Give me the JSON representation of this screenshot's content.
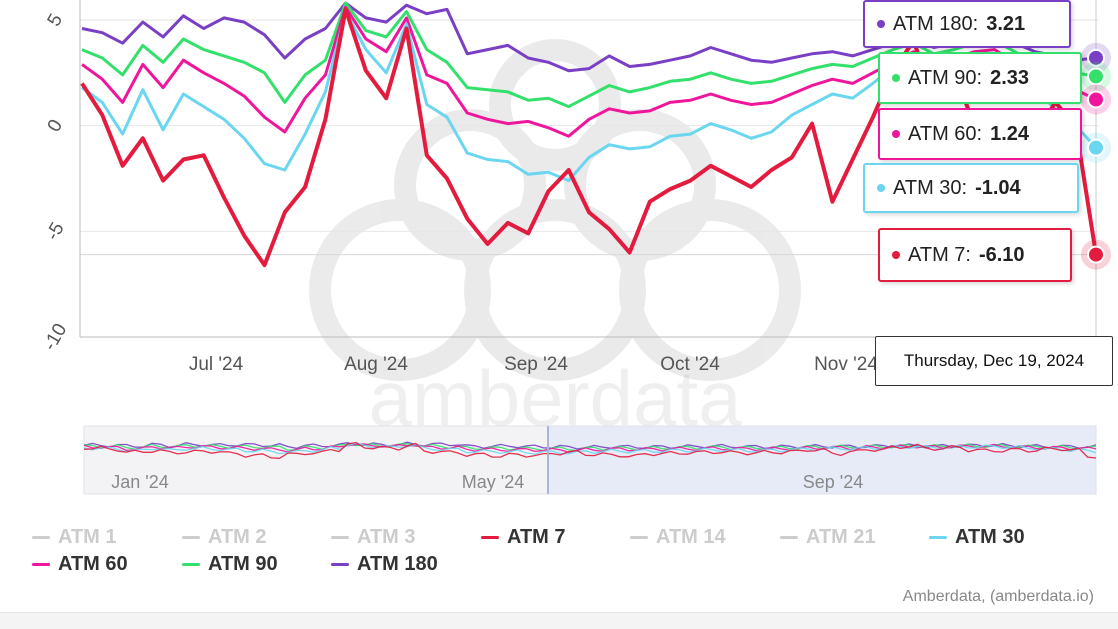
{
  "credit": "Amberdata, (amberdata.io)",
  "watermark": "amberdata",
  "chart_data": {
    "type": "line",
    "xlabel": "",
    "ylabel": "",
    "ylim": [
      -10,
      5
    ],
    "yticks": [
      5,
      0,
      -5,
      -10
    ],
    "ytick_labels": [
      "5",
      "0",
      "-5",
      "-10"
    ],
    "xtick_labels": [
      "Jul '24",
      "Aug '24",
      "Sep '24",
      "Oct '24",
      "Nov '24"
    ],
    "navigator_labels": [
      "Jan '24",
      "May '24",
      "Sep '24"
    ],
    "grid": "horizontal",
    "hover_date": "Thursday, Dec 19, 2024",
    "series": [
      {
        "name": "ATM 180",
        "color": "#7a3fc4",
        "last_label": "3.21",
        "values": [
          4.6,
          4.4,
          3.9,
          4.9,
          4.2,
          5.2,
          4.6,
          5.1,
          4.9,
          4.3,
          3.2,
          4.1,
          4.6,
          5.8,
          5.1,
          4.9,
          5.7,
          5.3,
          5.5,
          3.4,
          3.6,
          3.8,
          3.2,
          3.0,
          2.6,
          2.7,
          3.3,
          2.8,
          2.9,
          3.1,
          3.3,
          3.7,
          3.4,
          3.1,
          3.0,
          3.2,
          3.4,
          3.5,
          3.3,
          3.6,
          3.9,
          4.1,
          3.7,
          3.9,
          4.2,
          4.4,
          3.9,
          3.5,
          3.3,
          3.1,
          3.21
        ]
      },
      {
        "name": "ATM 90",
        "color": "#33e06c",
        "last_label": "2.33",
        "values": [
          3.6,
          3.2,
          2.4,
          3.8,
          3.0,
          4.1,
          3.6,
          3.3,
          3.0,
          2.5,
          1.1,
          2.4,
          3.1,
          5.8,
          4.5,
          4.2,
          5.4,
          3.6,
          3.0,
          1.8,
          1.7,
          1.6,
          1.2,
          1.3,
          0.9,
          1.4,
          1.9,
          1.6,
          1.8,
          2.1,
          2.2,
          2.5,
          2.2,
          2.0,
          2.1,
          2.4,
          2.7,
          2.9,
          2.8,
          3.2,
          3.6,
          3.9,
          3.4,
          3.6,
          3.9,
          4.0,
          3.5,
          3.0,
          2.7,
          2.5,
          2.33
        ]
      },
      {
        "name": "ATM 60",
        "color": "#f0169c",
        "last_label": "1.24",
        "values": [
          2.9,
          2.2,
          1.1,
          2.9,
          1.8,
          3.1,
          2.5,
          2.0,
          1.4,
          0.4,
          -0.3,
          1.3,
          2.4,
          5.6,
          4.1,
          3.5,
          5.1,
          2.4,
          2.0,
          0.6,
          0.3,
          0.1,
          0.2,
          -0.1,
          -0.5,
          0.3,
          0.8,
          0.6,
          0.7,
          1.1,
          1.2,
          1.5,
          1.2,
          1.0,
          1.1,
          1.5,
          1.9,
          2.2,
          2.0,
          2.5,
          3.0,
          3.5,
          3.0,
          3.2,
          3.5,
          3.6,
          3.0,
          2.4,
          2.0,
          1.7,
          1.24
        ]
      },
      {
        "name": "ATM 30",
        "color": "#6ad6f0",
        "last_label": "-1.04",
        "values": [
          1.8,
          1.1,
          -0.4,
          1.7,
          -0.2,
          1.5,
          0.9,
          0.3,
          -0.6,
          -1.8,
          -2.1,
          -0.4,
          1.6,
          5.4,
          3.6,
          2.5,
          4.8,
          1.0,
          0.4,
          -1.3,
          -1.6,
          -1.7,
          -2.3,
          -2.2,
          -2.6,
          -1.5,
          -0.9,
          -1.1,
          -1.0,
          -0.5,
          -0.4,
          0.1,
          -0.2,
          -0.6,
          -0.3,
          0.5,
          1.0,
          1.5,
          1.3,
          2.0,
          2.8,
          3.2,
          2.6,
          2.9,
          3.1,
          3.2,
          2.6,
          1.7,
          0.8,
          0.0,
          -1.04
        ]
      },
      {
        "name": "ATM 7",
        "color": "#e31b3e",
        "last_label": "-6.10",
        "values": [
          2.0,
          0.5,
          -1.9,
          -0.6,
          -2.6,
          -1.6,
          -1.4,
          -3.4,
          -5.2,
          -6.6,
          -4.1,
          -2.9,
          0.3,
          5.5,
          2.6,
          1.3,
          4.6,
          -1.4,
          -2.5,
          -4.4,
          -5.6,
          -4.6,
          -5.1,
          -3.1,
          -2.1,
          -4.1,
          -4.9,
          -6.0,
          -3.6,
          -3.0,
          -2.6,
          -1.9,
          -2.4,
          -2.9,
          -2.1,
          -1.5,
          0.1,
          -3.6,
          -1.6,
          0.4,
          2.6,
          4.0,
          1.4,
          2.6,
          0.0,
          -0.6,
          0.2,
          -0.4,
          1.1,
          0.0,
          -6.1
        ]
      }
    ],
    "hidden_series": [
      "ATM 1",
      "ATM 2",
      "ATM 3",
      "ATM 14",
      "ATM 21"
    ]
  },
  "legend": [
    {
      "label": "ATM 1",
      "color": "#cccccc",
      "visible": false
    },
    {
      "label": "ATM 2",
      "color": "#cccccc",
      "visible": false
    },
    {
      "label": "ATM 3",
      "color": "#cccccc",
      "visible": false
    },
    {
      "label": "ATM 7",
      "color": "#e31b3e",
      "visible": true
    },
    {
      "label": "ATM 14",
      "color": "#cccccc",
      "visible": false
    },
    {
      "label": "ATM 21",
      "color": "#cccccc",
      "visible": false
    },
    {
      "label": "ATM 30",
      "color": "#6ad6f0",
      "visible": true
    },
    {
      "label": "ATM 60",
      "color": "#f0169c",
      "visible": true
    },
    {
      "label": "ATM 90",
      "color": "#33e06c",
      "visible": true
    },
    {
      "label": "ATM 180",
      "color": "#7a3fc4",
      "visible": true
    }
  ],
  "tooltips": [
    {
      "label": "ATM 180:",
      "value": "3.21",
      "color": "#7a3fc4"
    },
    {
      "label": "ATM 90:",
      "value": "2.33",
      "color": "#33e06c"
    },
    {
      "label": "ATM 60:",
      "value": "1.24",
      "color": "#f0169c"
    },
    {
      "label": "ATM 30:",
      "value": "-1.04",
      "color": "#6ad6f0"
    },
    {
      "label": "ATM 7:",
      "value": "-6.10",
      "color": "#e31b3e"
    }
  ]
}
